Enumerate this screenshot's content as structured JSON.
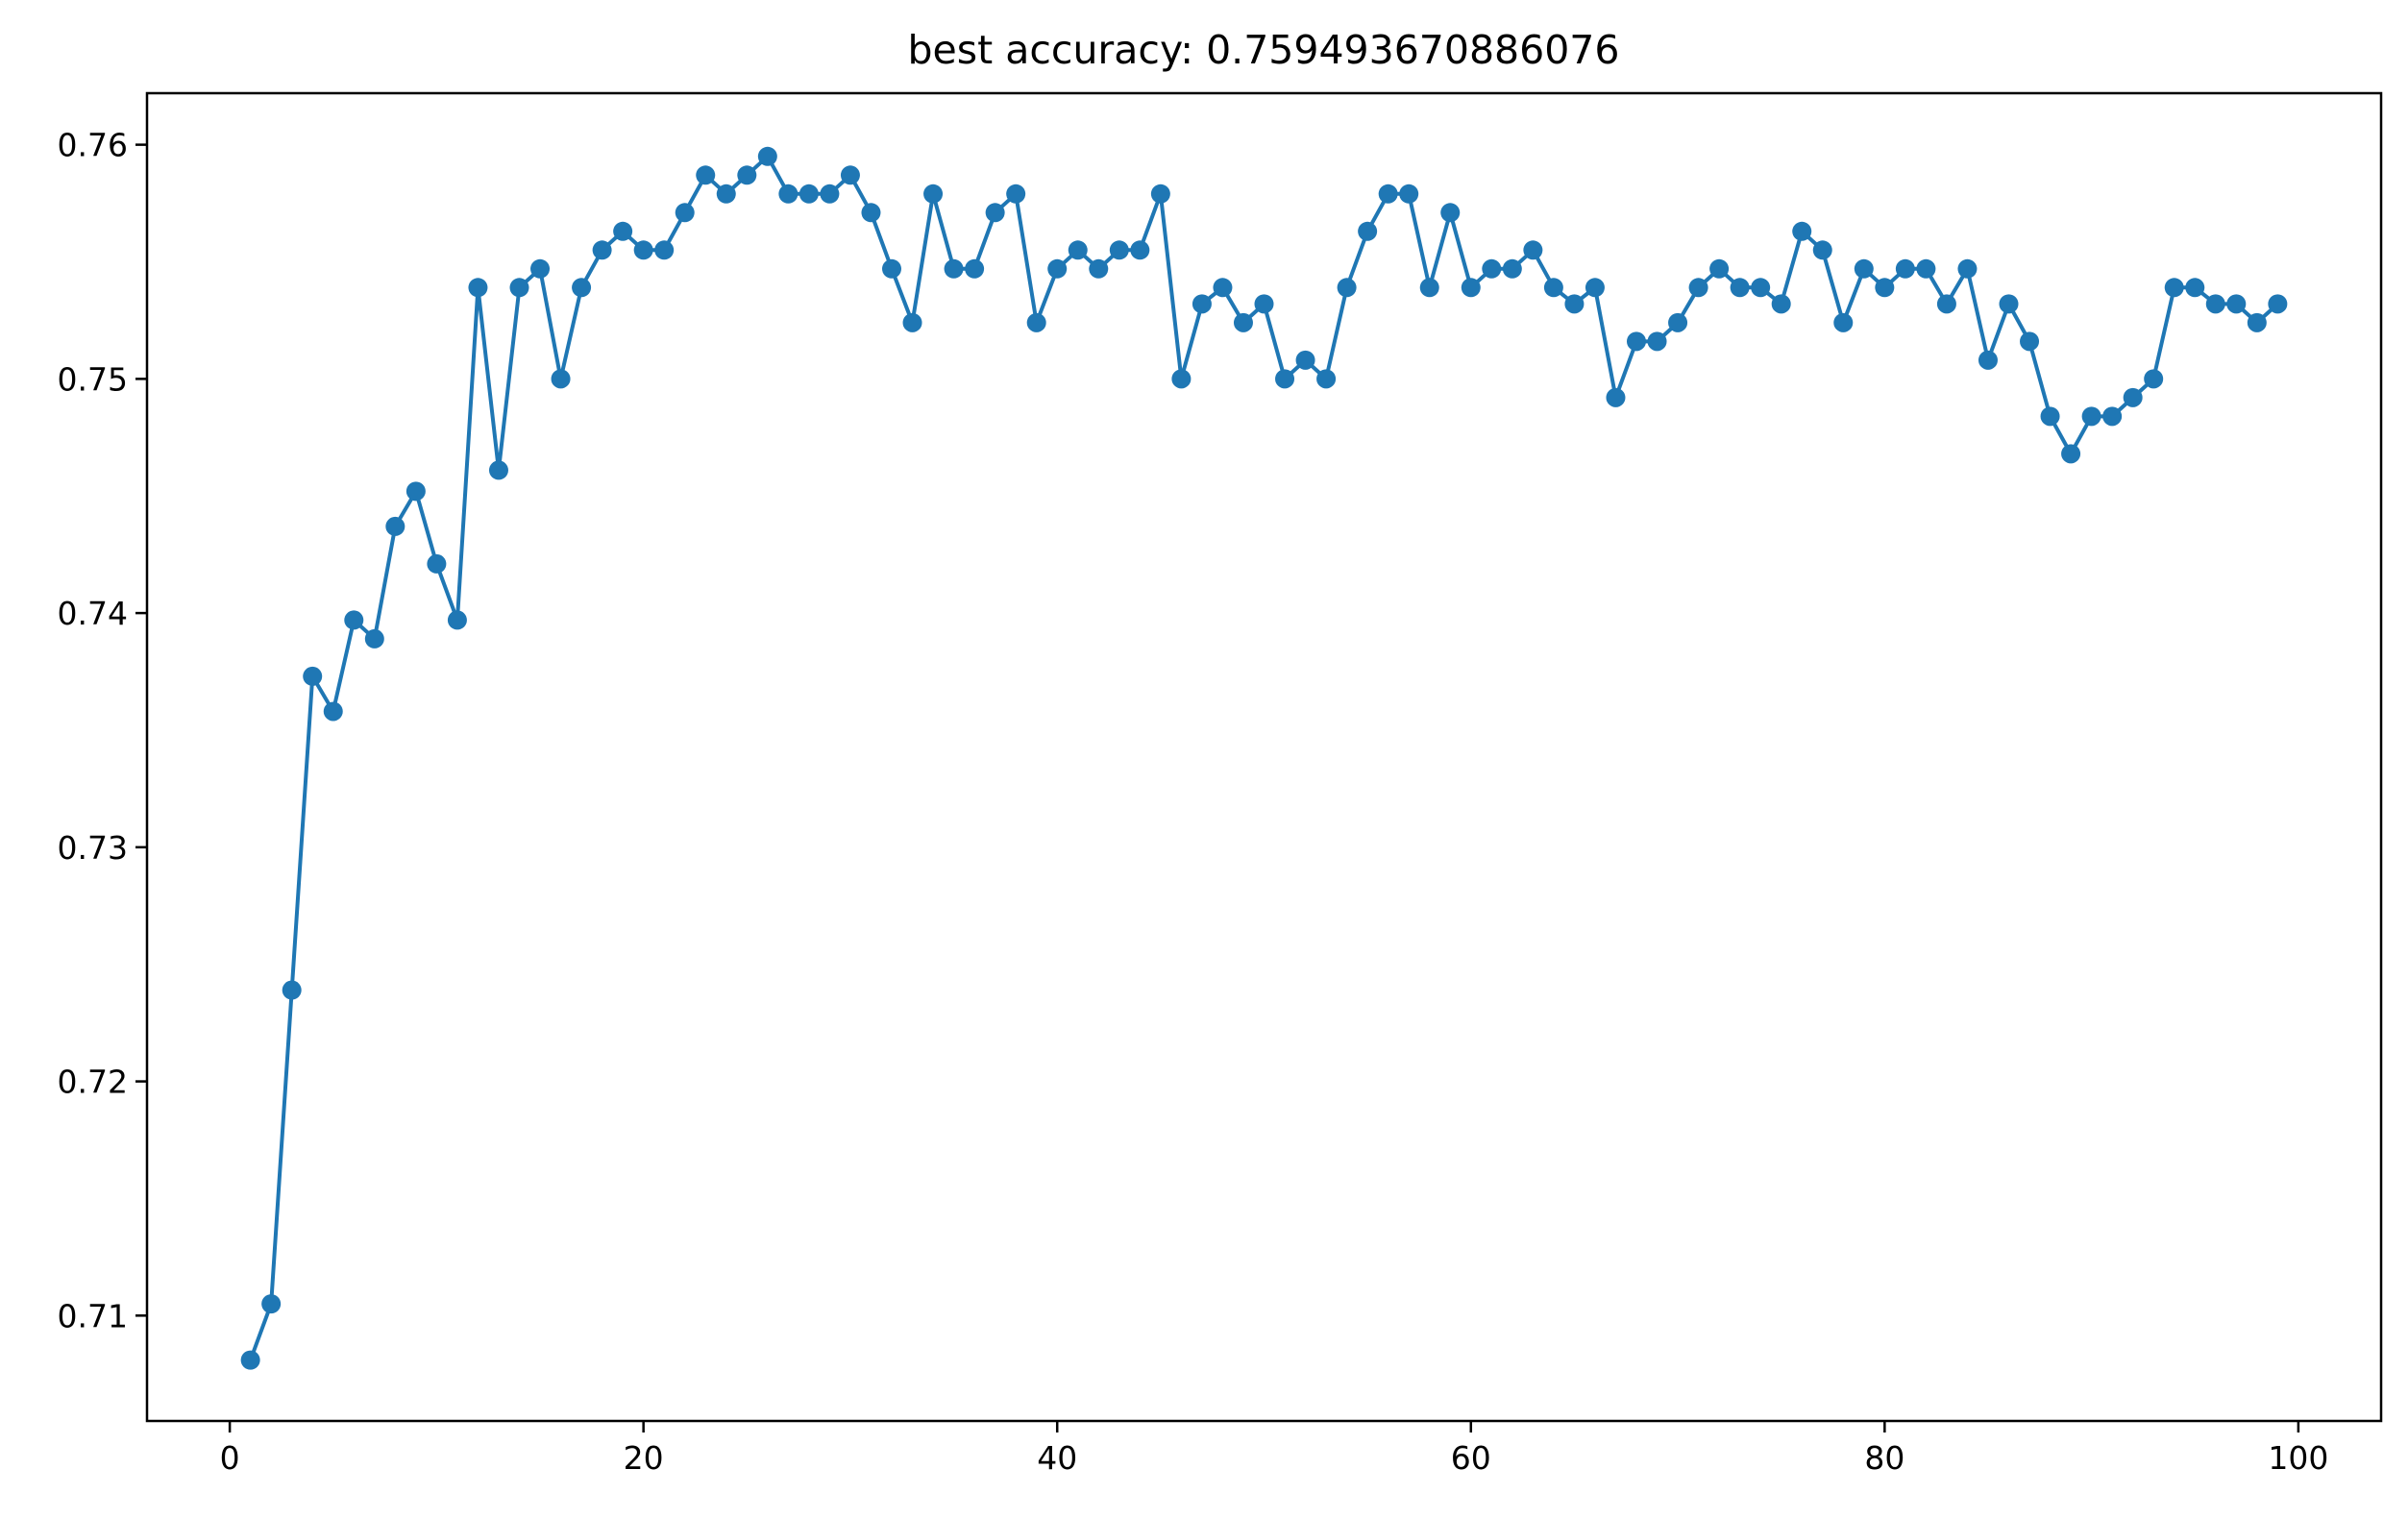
{
  "chart_data": {
    "type": "line",
    "title": "best accuracy: 0.759493670886076",
    "xlabel": "",
    "ylabel": "",
    "xlim": [
      -4,
      104
    ],
    "ylim": [
      0.7055,
      0.7622
    ],
    "xticks": [
      0,
      20,
      40,
      60,
      80,
      100
    ],
    "xtick_labels": [
      "0",
      "20",
      "40",
      "60",
      "80",
      "100"
    ],
    "yticks": [
      0.71,
      0.72,
      0.73,
      0.74,
      0.75,
      0.76
    ],
    "ytick_labels": [
      "0.71",
      "0.72",
      "0.73",
      "0.74",
      "0.75",
      "0.76"
    ],
    "grid": false,
    "color": "#1f77b4",
    "series": [
      {
        "marker": "circle",
        "x": [
          1,
          2,
          3,
          4,
          5,
          6,
          7,
          8,
          9,
          10,
          11,
          12,
          13,
          14,
          15,
          16,
          17,
          18,
          19,
          20,
          21,
          22,
          23,
          24,
          25,
          26,
          27,
          28,
          29,
          30,
          31,
          32,
          33,
          34,
          35,
          36,
          37,
          38,
          39,
          40,
          41,
          42,
          43,
          44,
          45,
          46,
          47,
          48,
          49,
          50,
          51,
          52,
          53,
          54,
          55,
          56,
          57,
          58,
          59,
          60,
          61,
          62,
          63,
          64,
          65,
          66,
          67,
          68,
          69,
          70,
          71,
          72,
          73,
          74,
          75,
          76,
          77,
          78,
          79,
          80,
          81,
          82,
          83,
          84,
          85,
          86,
          87,
          88,
          89,
          90,
          91,
          92,
          93,
          94,
          95,
          96,
          97,
          98,
          99
        ],
        "values": [
          0.7081,
          0.7105,
          0.7239,
          0.7373,
          0.7358,
          0.7397,
          0.7389,
          0.7437,
          0.7452,
          0.7421,
          0.7397,
          0.7539,
          0.7461,
          0.7539,
          0.7547,
          0.75,
          0.7539,
          0.7555,
          0.7563,
          0.7555,
          0.7555,
          0.7571,
          0.7587,
          0.7579,
          0.7587,
          0.7595,
          0.7579,
          0.7579,
          0.7579,
          0.7587,
          0.7571,
          0.7547,
          0.7524,
          0.7579,
          0.7547,
          0.7547,
          0.7571,
          0.7579,
          0.7524,
          0.7547,
          0.7555,
          0.7547,
          0.7555,
          0.7555,
          0.7579,
          0.75,
          0.7532,
          0.7539,
          0.7524,
          0.7532,
          0.75,
          0.7508,
          0.75,
          0.7539,
          0.7563,
          0.7579,
          0.7579,
          0.7539,
          0.7571,
          0.7539,
          0.7547,
          0.7547,
          0.7555,
          0.7539,
          0.7532,
          0.7539,
          0.7492,
          0.7516,
          0.7516,
          0.7524,
          0.7539,
          0.7547,
          0.7539,
          0.7539,
          0.7532,
          0.7563,
          0.7555,
          0.7524,
          0.7547,
          0.7539,
          0.7547,
          0.7547,
          0.7532,
          0.7547,
          0.7508,
          0.7532,
          0.7516,
          0.7484,
          0.7468,
          0.7484,
          0.7484,
          0.7492,
          0.75,
          0.7539,
          0.7539,
          0.7532,
          0.7532,
          0.7524,
          0.7532
        ]
      }
    ]
  }
}
